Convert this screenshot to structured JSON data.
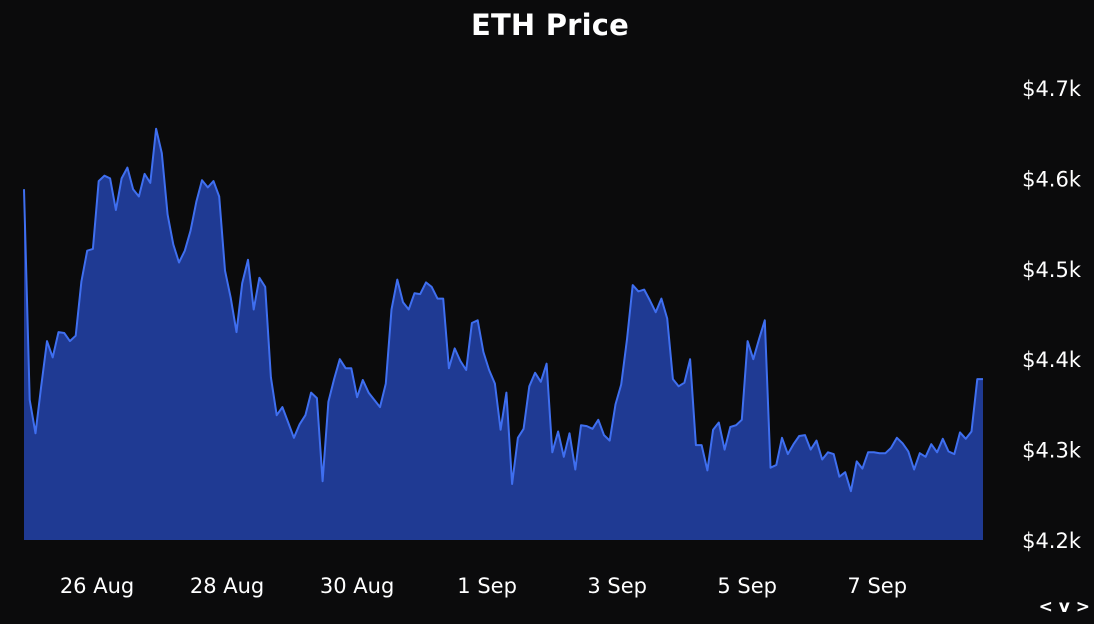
{
  "chart_data": {
    "type": "area",
    "title": "ETH Price",
    "xlabel": "",
    "ylabel": "",
    "x_start": "2025-08-25",
    "x_end": "2025-09-08T18:00",
    "ylim": [
      4200,
      4700
    ],
    "yticks": [
      4200,
      4300,
      4400,
      4500,
      4600,
      4700
    ],
    "ytick_labels": [
      "$4.2k",
      "$4.3k",
      "$4.4k",
      "$4.5k",
      "$4.6k",
      "$4.7k"
    ],
    "xtick_labels": [
      "26 Aug",
      "28 Aug",
      "30 Aug",
      "1 Sep",
      "3 Sep",
      "5 Sep",
      "7 Sep"
    ],
    "xtick_dates": [
      "2025-08-26",
      "2025-08-28",
      "2025-08-30",
      "2025-09-01",
      "2025-09-03",
      "2025-09-05",
      "2025-09-07"
    ],
    "grid": false,
    "colors": {
      "fill": "#1f3a93",
      "line": "#3f6ff0",
      "background": "#0b0b0c"
    },
    "values": [
      4588,
      4355,
      4318,
      4370,
      4420,
      4402,
      4430,
      4429,
      4420,
      4426,
      4486,
      4520,
      4522,
      4597,
      4603,
      4600,
      4565,
      4600,
      4612,
      4588,
      4580,
      4605,
      4595,
      4655,
      4628,
      4560,
      4527,
      4507,
      4520,
      4542,
      4574,
      4598,
      4590,
      4597,
      4580,
      4498,
      4468,
      4430,
      4484,
      4510,
      4455,
      4490,
      4480,
      4380,
      4338,
      4347,
      4330,
      4313,
      4328,
      4338,
      4363,
      4357,
      4265,
      4353,
      4378,
      4400,
      4390,
      4390,
      4358,
      4377,
      4363,
      4355,
      4347,
      4373,
      4455,
      4488,
      4463,
      4455,
      4473,
      4472,
      4485,
      4480,
      4467,
      4467,
      4390,
      4412,
      4398,
      4388,
      4440,
      4443,
      4408,
      4388,
      4373,
      4322,
      4363,
      4262,
      4313,
      4323,
      4370,
      4385,
      4375,
      4395,
      4297,
      4320,
      4292,
      4318,
      4278,
      4327,
      4326,
      4323,
      4333,
      4316,
      4310,
      4350,
      4372,
      4422,
      4482,
      4475,
      4477,
      4465,
      4452,
      4467,
      4445,
      4378,
      4370,
      4374,
      4400,
      4305,
      4305,
      4277,
      4322,
      4330,
      4300,
      4325,
      4327,
      4333,
      4420,
      4400,
      4422,
      4443,
      4280,
      4283,
      4313,
      4295,
      4306,
      4315,
      4316,
      4300,
      4310,
      4289,
      4297,
      4295,
      4270,
      4275,
      4254,
      4287,
      4279,
      4297,
      4297,
      4296,
      4296,
      4302,
      4313,
      4307,
      4298,
      4278,
      4296,
      4292,
      4306,
      4297,
      4312,
      4298,
      4295,
      4319,
      4312,
      4320,
      4378,
      4378
    ]
  },
  "nav": {
    "label": "< v >"
  }
}
